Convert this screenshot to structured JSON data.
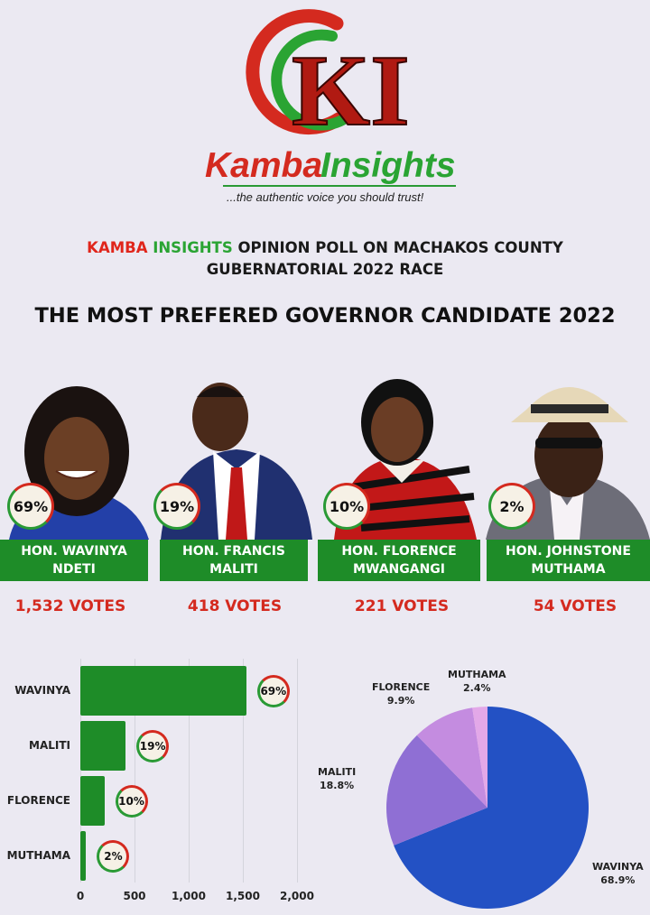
{
  "brand": {
    "logo_letters": "KI",
    "name_part1": "Kamba",
    "name_part2": "Insights",
    "tagline": "...the authentic voice you should trust!"
  },
  "heading": {
    "line1_red": "KAMBA",
    "line1_green": "INSIGHTS",
    "line1_rest": "OPINION POLL ON MACHAKOS COUNTY",
    "line2": "GUBERNATORIAL 2022 RACE",
    "main": "THE MOST PREFERED GOVERNOR CANDIDATE 2022"
  },
  "candidates": [
    {
      "name_line1": "HON. WAVINYA",
      "name_line2": "NDETI",
      "percent": "69%",
      "votes": "1,532 VOTES"
    },
    {
      "name_line1": "HON. FRANCIS",
      "name_line2": "MALITI",
      "percent": "19%",
      "votes": "418 VOTES"
    },
    {
      "name_line1": "HON. FLORENCE",
      "name_line2": "MWANGANGI",
      "percent": "10%",
      "votes": "221 VOTES"
    },
    {
      "name_line1": "HON. JOHNSTONE",
      "name_line2": "MUTHAMA",
      "percent": "2%",
      "votes": "54 VOTES"
    }
  ],
  "colors": {
    "green": "#1e8c28",
    "red": "#d42a1f",
    "brand_red": "#e0251b",
    "brand_green": "#2aa433"
  },
  "chart_data": [
    {
      "type": "bar",
      "orientation": "horizontal",
      "categories": [
        "WAVINYA",
        "MALITI",
        "FLORENCE",
        "MUTHAMA"
      ],
      "values": [
        1532,
        418,
        221,
        54
      ],
      "data_labels": [
        "69%",
        "19%",
        "10%",
        "2%"
      ],
      "xlim": [
        0,
        2000
      ],
      "xticks": [
        0,
        500,
        1000,
        1500,
        2000
      ],
      "xtick_labels": [
        "0",
        "500",
        "1,000",
        "1,500",
        "2,000"
      ],
      "grid": true,
      "color": "#1e8c28"
    },
    {
      "type": "pie",
      "slices": [
        {
          "label": "WAVINYA",
          "value": 68.9,
          "display": "68.9%",
          "color": "#2351c4"
        },
        {
          "label": "MALITI",
          "value": 18.8,
          "display": "18.8%",
          "color": "#8f6fd4"
        },
        {
          "label": "FLORENCE",
          "value": 9.9,
          "display": "9.9%",
          "color": "#c48ce0"
        },
        {
          "label": "MUTHAMA",
          "value": 2.4,
          "display": "2.4%",
          "color": "#e3a8e8"
        }
      ]
    }
  ]
}
